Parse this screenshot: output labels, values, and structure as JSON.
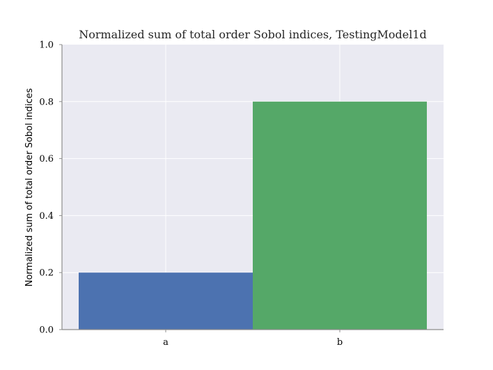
{
  "chart_data": {
    "type": "bar",
    "title": "Normalized sum of total order Sobol indices, TestingModel1d",
    "xlabel": "",
    "ylabel": "Normalized sum of total order Sobol indices",
    "categories": [
      "a",
      "b"
    ],
    "values": [
      0.2,
      0.8
    ],
    "colors": [
      "#4c72b0",
      "#55a868"
    ],
    "ylim": [
      0,
      1.0
    ],
    "yticks": [
      0.0,
      0.2,
      0.4,
      0.6,
      0.8,
      1.0
    ],
    "ytick_labels": [
      "0.0",
      "0.2",
      "0.4",
      "0.6",
      "0.8",
      "1.0"
    ],
    "grid": true,
    "background_color": "#eaeaf2",
    "grid_color": "#ffffff"
  }
}
